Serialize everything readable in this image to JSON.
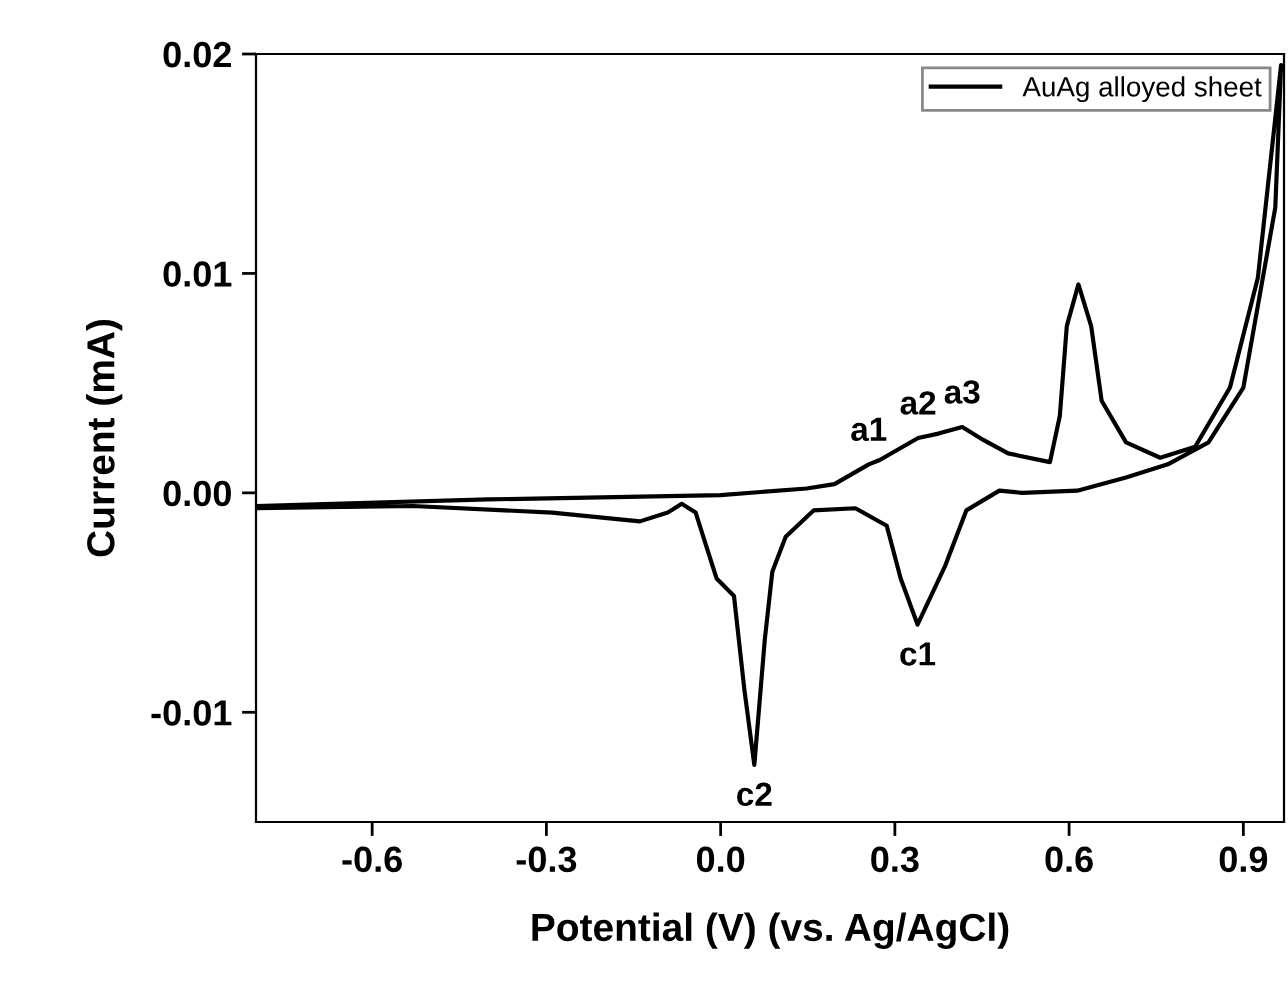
{
  "chart_data": {
    "type": "line",
    "xlabel": "Potential (V) (vs. Ag/AgCl)",
    "ylabel": "Current (mA)",
    "xlim": [
      -0.8,
      0.97
    ],
    "ylim": [
      -0.015,
      0.02
    ],
    "xticks": [
      -0.6,
      -0.3,
      {
        "value": 0,
        "label": "0.0"
      },
      0.3,
      0.6,
      0.9
    ],
    "yticks": [
      0.02,
      0.01,
      {
        "value": 0,
        "label": "0.00"
      },
      -0.01
    ],
    "grid": false,
    "legend": "top right",
    "marker": "none",
    "line_style": "solid",
    "series": [
      {
        "name": "AuAg alloyed sheet",
        "color": "#000000",
        "x": [
          -0.8,
          -0.4,
          0.0,
          0.148,
          0.196,
          0.255,
          0.274,
          0.34,
          0.375,
          0.416,
          0.453,
          0.495,
          0.567,
          0.584,
          0.596,
          0.616,
          0.638,
          0.656,
          0.698,
          0.757,
          0.817,
          0.877,
          0.925,
          0.965,
          0.955,
          0.9,
          0.84,
          0.77,
          0.698,
          0.614,
          0.519,
          0.48,
          0.423,
          0.387,
          0.339,
          0.31,
          0.286,
          0.232,
          0.16,
          0.112,
          0.089,
          0.076,
          0.058,
          0.041,
          0.023,
          -0.007,
          -0.025,
          -0.043,
          -0.067,
          -0.091,
          -0.139,
          -0.29,
          -0.53,
          -0.8
        ],
        "values": [
          -0.0006,
          -0.0003,
          -0.0001,
          0.0002,
          0.0004,
          0.0013,
          0.0015,
          0.0025,
          0.0027,
          0.003,
          0.0024,
          0.0018,
          0.0014,
          0.0035,
          0.0076,
          0.0095,
          0.0076,
          0.0042,
          0.0023,
          0.0016,
          0.0021,
          0.0048,
          0.0098,
          0.0195,
          0.013,
          0.0048,
          0.0023,
          0.0013,
          0.0007,
          0.0001,
          0.0,
          0.0001,
          -0.0008,
          -0.0033,
          -0.006,
          -0.0039,
          -0.0015,
          -0.0007,
          -0.0008,
          -0.002,
          -0.0036,
          -0.0067,
          -0.0124,
          -0.009,
          -0.0047,
          -0.0039,
          -0.0024,
          -0.0009,
          -0.0005,
          -0.0009,
          -0.0013,
          -0.0009,
          -0.0006,
          -0.0007
        ]
      }
    ],
    "annotations": [
      {
        "text": "a1",
        "x": 0.255,
        "y": 0.0013
      },
      {
        "text": "a2",
        "x": 0.34,
        "y": 0.0025
      },
      {
        "text": "a3",
        "x": 0.416,
        "y": 0.003
      },
      {
        "text": "c1",
        "x": 0.339,
        "y": -0.006
      },
      {
        "text": "c2",
        "x": 0.058,
        "y": -0.0124
      }
    ]
  }
}
